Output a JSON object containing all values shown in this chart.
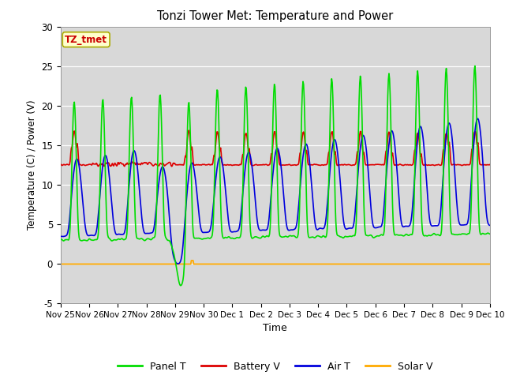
{
  "title": "Tonzi Tower Met: Temperature and Power",
  "xlabel": "Time",
  "ylabel": "Temperature (C) / Power (V)",
  "ylim": [
    -5,
    30
  ],
  "annotation_text": "TZ_tmet",
  "annotation_color": "#cc0000",
  "annotation_bg": "#ffffcc",
  "annotation_edge": "#aaaa00",
  "plot_bg": "#d8d8d8",
  "fig_bg": "#ffffff",
  "line_colors": {
    "panel": "#00dd00",
    "battery": "#dd0000",
    "air": "#0000dd",
    "solar": "#ffaa00"
  },
  "legend_labels": [
    "Panel T",
    "Battery V",
    "Air T",
    "Solar V"
  ],
  "xtick_labels": [
    "Nov 25",
    "Nov 26",
    "Nov 27",
    "Nov 28",
    "Nov 29",
    "Nov 30",
    "Dec 1",
    "Dec 2",
    "Dec 3",
    "Dec 4",
    "Dec 5",
    "Dec 6",
    "Dec 7",
    "Dec 8",
    "Dec 9",
    "Dec 10"
  ],
  "ytick_vals": [
    -5,
    0,
    5,
    10,
    15,
    20,
    25,
    30
  ],
  "grid_color": "#bbbbbb",
  "line_width": 1.0
}
